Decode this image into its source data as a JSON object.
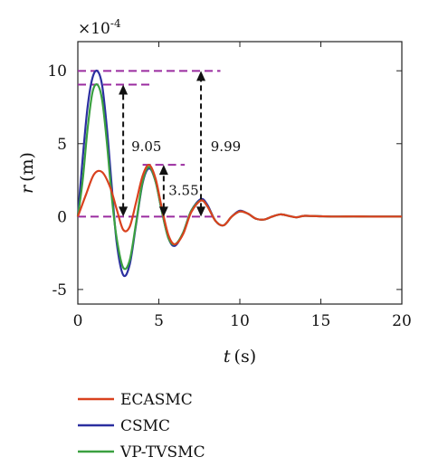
{
  "chart_data": {
    "type": "line",
    "xlabel_var": "t",
    "xlabel_unit": "(s)",
    "ylabel_var": "r",
    "ylabel_unit": "(m)",
    "y_multiplier_base": "×10",
    "y_multiplier_exp": "-4",
    "xlim": [
      0,
      20
    ],
    "ylim": [
      -6,
      12
    ],
    "xticks": [
      0,
      5,
      10,
      15,
      20
    ],
    "yticks": [
      -5,
      0,
      5,
      10
    ],
    "grid": false,
    "legend_position": "below",
    "series": [
      {
        "name": "ECASMC",
        "color": "#d9411e",
        "x": [
          0,
          0.5,
          1.0,
          1.5,
          2.0,
          2.4,
          2.8,
          3.2,
          3.6,
          4.0,
          4.4,
          4.8,
          5.2,
          5.6,
          6.0,
          6.5,
          7.0,
          7.6,
          8.0,
          8.5,
          9.0,
          9.5,
          10.0,
          10.5,
          11.0,
          11.5,
          12.0,
          12.5,
          13.0,
          13.5,
          14.0,
          15.0,
          16.0,
          17.0,
          18.0,
          19.0,
          20.0
        ],
        "y": [
          0,
          1.5,
          2.9,
          3.05,
          2.0,
          0.5,
          -0.9,
          -0.7,
          1.0,
          2.8,
          3.55,
          2.6,
          0.5,
          -1.3,
          -1.9,
          -1.2,
          0.3,
          1.1,
          0.7,
          -0.3,
          -0.6,
          0.0,
          0.35,
          0.2,
          -0.15,
          -0.2,
          0.0,
          0.15,
          0.05,
          -0.05,
          0.05,
          0.02,
          0.0,
          0.01,
          0.0,
          0.0,
          0.0
        ]
      },
      {
        "name": "CSMC",
        "color": "#2b2fa0",
        "x": [
          0,
          0.3,
          0.6,
          0.9,
          1.2,
          1.5,
          1.8,
          2.1,
          2.4,
          2.8,
          3.2,
          3.6,
          4.0,
          4.4,
          4.8,
          5.2,
          5.6,
          6.0,
          6.5,
          7.0,
          7.6,
          8.0,
          8.5,
          9.0,
          9.5,
          10.0,
          10.5,
          11.0,
          11.5,
          12.0,
          12.5,
          13.0,
          13.5,
          14.0,
          15.0,
          16.0,
          17.0,
          18.0,
          19.0,
          20.0
        ],
        "y": [
          0,
          4.0,
          7.5,
          9.5,
          9.99,
          9.0,
          6.0,
          2.0,
          -1.8,
          -4.0,
          -3.3,
          -0.5,
          2.3,
          3.3,
          2.4,
          0.3,
          -1.5,
          -2.0,
          -1.1,
          0.4,
          1.2,
          0.8,
          -0.3,
          -0.6,
          0.0,
          0.4,
          0.2,
          -0.15,
          -0.2,
          0.0,
          0.15,
          0.05,
          -0.05,
          0.05,
          0.02,
          0.0,
          0.01,
          0.0,
          0.0,
          0.0
        ]
      },
      {
        "name": "VP-TVSMC",
        "color": "#3aa040",
        "x": [
          0,
          0.3,
          0.6,
          0.9,
          1.2,
          1.5,
          1.8,
          2.1,
          2.4,
          2.8,
          3.2,
          3.6,
          4.0,
          4.4,
          4.8,
          5.2,
          5.6,
          6.0,
          6.5,
          7.0,
          7.6,
          8.0,
          8.5,
          9.0,
          9.5,
          10.0,
          10.5,
          11.0,
          11.5,
          12.0,
          12.5,
          13.0,
          13.5,
          14.0,
          15.0,
          16.0,
          17.0,
          18.0,
          19.0,
          20.0
        ],
        "y": [
          0,
          2.5,
          6.0,
          8.5,
          9.05,
          8.0,
          5.0,
          1.3,
          -1.5,
          -3.5,
          -3.0,
          -0.4,
          2.4,
          3.4,
          2.4,
          0.3,
          -1.5,
          -1.9,
          -1.1,
          0.4,
          1.1,
          0.7,
          -0.3,
          -0.6,
          0.0,
          0.35,
          0.2,
          -0.15,
          -0.2,
          0.0,
          0.15,
          0.05,
          -0.05,
          0.05,
          0.02,
          0.0,
          0.01,
          0.0,
          0.0,
          0.0
        ]
      }
    ],
    "reference_lines": {
      "color": "#9b2ca0",
      "lines": [
        {
          "y": 9.99,
          "x_from": 0,
          "x_to": 8.8
        },
        {
          "y": 9.05,
          "x_from": 0,
          "x_to": 4.5
        },
        {
          "y": 3.55,
          "x_from": 4.0,
          "x_to": 6.6
        },
        {
          "y": 0,
          "x_from": 0,
          "x_to": 8.8
        }
      ]
    },
    "annotations": [
      {
        "label": "9.05",
        "arrow_x": 2.8,
        "y_from": 0,
        "y_to": 9.05,
        "label_x": 3.3,
        "label_y": 4.8
      },
      {
        "label": "3.55",
        "arrow_x": 5.3,
        "y_from": 0,
        "y_to": 3.55,
        "label_x": 5.6,
        "label_y": 1.8
      },
      {
        "label": "9.99",
        "arrow_x": 7.6,
        "y_from": 0,
        "y_to": 9.99,
        "label_x": 8.2,
        "label_y": 4.8
      }
    ]
  }
}
